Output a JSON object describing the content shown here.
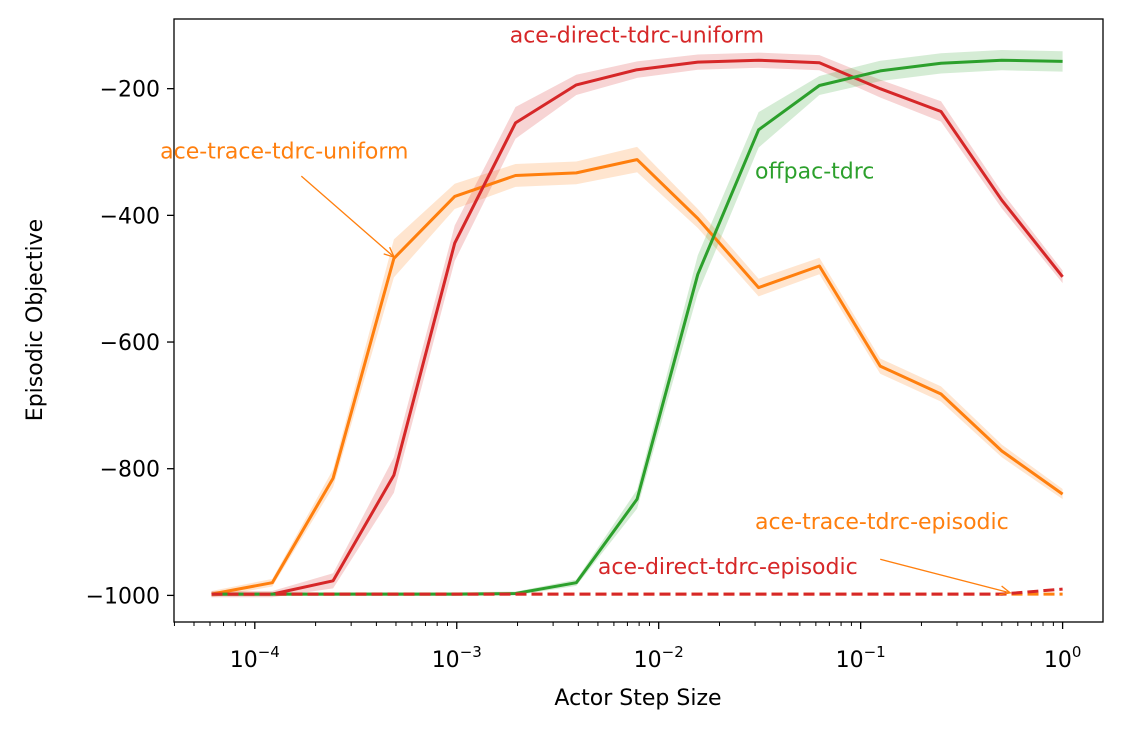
{
  "chart_data": {
    "type": "line",
    "title": "",
    "xlabel": "Actor Step Size",
    "ylabel": "Episodic Objective",
    "xscale": "log",
    "xlim": [
      3.98e-05,
      1.585
    ],
    "ylim": [
      -1042,
      -90
    ],
    "grid": false,
    "legend": "none (inline annotations)",
    "x_ticks": [
      {
        "value": 0.0001,
        "base": "10",
        "exp": "−4"
      },
      {
        "value": 0.001,
        "base": "10",
        "exp": "−3"
      },
      {
        "value": 0.01,
        "base": "10",
        "exp": "−2"
      },
      {
        "value": 0.1,
        "base": "10",
        "exp": "−1"
      },
      {
        "value": 1,
        "base": "10",
        "exp": "0"
      }
    ],
    "y_ticks": [
      {
        "value": -200,
        "label": "−200"
      },
      {
        "value": -400,
        "label": "−400"
      },
      {
        "value": -600,
        "label": "−600"
      },
      {
        "value": -800,
        "label": "−800"
      },
      {
        "value": -1000,
        "label": "−1000"
      }
    ],
    "x": [
      6.104e-05,
      0.00012207,
      0.00024414,
      0.00048828,
      0.00097656,
      0.00195312,
      0.00390625,
      0.0078125,
      0.015625,
      0.03125,
      0.0625,
      0.125,
      0.25,
      0.5,
      1
    ],
    "series": [
      {
        "name": "ace-trace-tdrc-uniform",
        "color": "#ff7f0e",
        "dash": false,
        "values": [
          -998,
          -980,
          -815,
          -468,
          -370,
          -337,
          -333,
          -312,
          -405,
          -514,
          -480,
          -638,
          -682,
          -772,
          -840
        ],
        "band": [
          5,
          6,
          14,
          30,
          20,
          18,
          18,
          20,
          15,
          14,
          13,
          12,
          12,
          10,
          8
        ]
      },
      {
        "name": "ace-direct-tdrc-uniform",
        "color": "#d62728",
        "dash": false,
        "values": [
          -998,
          -998,
          -977,
          -810,
          -444,
          -254,
          -194,
          -170,
          -158,
          -155,
          -159,
          -200,
          -236,
          -376,
          -497
        ],
        "band": [
          5,
          5,
          12,
          28,
          28,
          25,
          16,
          13,
          12,
          12,
          12,
          14,
          16,
          13,
          10
        ]
      },
      {
        "name": "offpac-tdrc",
        "color": "#2ca02c",
        "dash": false,
        "values": [
          -998,
          -998,
          -998,
          -998,
          -998,
          -997,
          -980,
          -848,
          -493,
          -265,
          -195,
          -172,
          -160,
          -155,
          -157
        ],
        "band": [
          3,
          3,
          3,
          3,
          3,
          3,
          5,
          15,
          30,
          28,
          15,
          16,
          16,
          16,
          16
        ]
      },
      {
        "name": "ace-trace-tdrc-episodic",
        "color": "#ff7f0e",
        "dash": true,
        "values": [
          -998,
          -998,
          -998,
          -998,
          -998,
          -998,
          -998,
          -998,
          -998,
          -998,
          -998,
          -998,
          -998,
          -998,
          -998
        ],
        "band": [
          0,
          0,
          0,
          0,
          0,
          0,
          0,
          0,
          0,
          0,
          0,
          0,
          0,
          0,
          0
        ]
      },
      {
        "name": "ace-direct-tdrc-episodic",
        "color": "#d62728",
        "dash": true,
        "values": [
          -998,
          -998,
          -998,
          -998,
          -998,
          -998,
          -998,
          -998,
          -998,
          -998,
          -998,
          -998,
          -998,
          -998,
          -990
        ],
        "band": [
          0,
          0,
          0,
          0,
          0,
          0,
          0,
          0,
          0,
          0,
          0,
          0,
          0,
          0,
          0
        ]
      }
    ],
    "annotations": [
      {
        "text": "ace-direct-tdrc-uniform",
        "color": "#d62728",
        "x": 0.0078,
        "y": -127,
        "anchor": "middle"
      },
      {
        "text": "ace-trace-tdrc-uniform",
        "color": "#ff7f0e",
        "x": 0.00014,
        "y": -310,
        "anchor": "middle",
        "arrow_from": [
          0.00017,
          -338
        ],
        "arrow_to": [
          0.00049,
          -466
        ]
      },
      {
        "text": "offpac-tdrc",
        "color": "#2ca02c",
        "x": 0.03,
        "y": -342,
        "anchor": "start"
      },
      {
        "text": "ace-trace-tdrc-episodic",
        "color": "#ff7f0e",
        "x": 0.03,
        "y": -895,
        "anchor": "start",
        "arrow_from": [
          0.125,
          -943
        ],
        "arrow_to": [
          0.55,
          -996
        ]
      },
      {
        "text": "ace-direct-tdrc-episodic",
        "color": "#d62728",
        "x": 0.005,
        "y": -966,
        "anchor": "start"
      }
    ]
  }
}
